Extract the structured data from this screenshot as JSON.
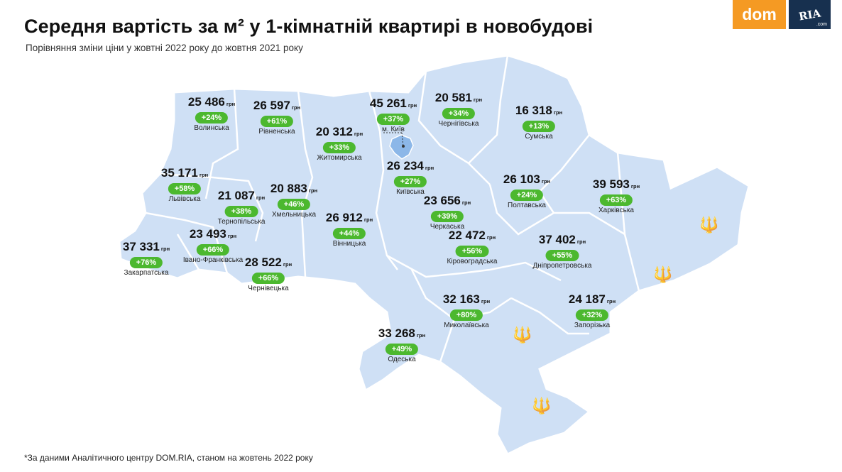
{
  "title": "Середня вартість за м² у 1-кімнатній квартирі в новобудові",
  "subtitle": "Порівняння зміни ціни у жовтні 2022 року до жовтня 2021 року",
  "footnote": "*За даними Аналітичного центру DOM.RIA, станом на жовтень 2022 року",
  "logo": {
    "part1": "dom",
    "part2": "RIA",
    "part3": ".com"
  },
  "unit": "грн",
  "colors": {
    "map_fill": "#cfe0f5",
    "border": "#ffffff",
    "badge": "#4cb82f",
    "kyiv": "#8cb7e8"
  },
  "regions": [
    {
      "name": "Волинська",
      "price": "25 486",
      "change": "+24%"
    },
    {
      "name": "Рівненська",
      "price": "26 597",
      "change": "+61%"
    },
    {
      "name": "Житомирська",
      "price": "20 312",
      "change": "+33%"
    },
    {
      "name": "м. Київ",
      "price": "45 261",
      "change": "+37%"
    },
    {
      "name": "Чернігівська",
      "price": "20 581",
      "change": "+34%"
    },
    {
      "name": "Сумська",
      "price": "16 318",
      "change": "+13%"
    },
    {
      "name": "Київська",
      "price": "26 234",
      "change": "+27%"
    },
    {
      "name": "Львівська",
      "price": "35 171",
      "change": "+58%"
    },
    {
      "name": "Тернопільська",
      "price": "21 087",
      "change": "+38%"
    },
    {
      "name": "Хмельницька",
      "price": "20 883",
      "change": "+46%"
    },
    {
      "name": "Полтавська",
      "price": "26 103",
      "change": "+24%"
    },
    {
      "name": "Харківська",
      "price": "39 593",
      "change": "+63%"
    },
    {
      "name": "Черкаська",
      "price": "23 656",
      "change": "+39%"
    },
    {
      "name": "Вінницька",
      "price": "26 912",
      "change": "+44%"
    },
    {
      "name": "Закарпатська",
      "price": "37 331",
      "change": "+76%"
    },
    {
      "name": "Івано-Франківська",
      "price": "23 493",
      "change": "+66%"
    },
    {
      "name": "Кіровоградська",
      "price": "22 472",
      "change": "+56%"
    },
    {
      "name": "Дніпропетровська",
      "price": "37 402",
      "change": "+55%"
    },
    {
      "name": "Чернівецька",
      "price": "28 522",
      "change": "+66%"
    },
    {
      "name": "Миколаївська",
      "price": "32 163",
      "change": "+80%"
    },
    {
      "name": "Запорізька",
      "price": "24 187",
      "change": "+32%"
    },
    {
      "name": "Одеська",
      "price": "33 268",
      "change": "+49%"
    }
  ]
}
